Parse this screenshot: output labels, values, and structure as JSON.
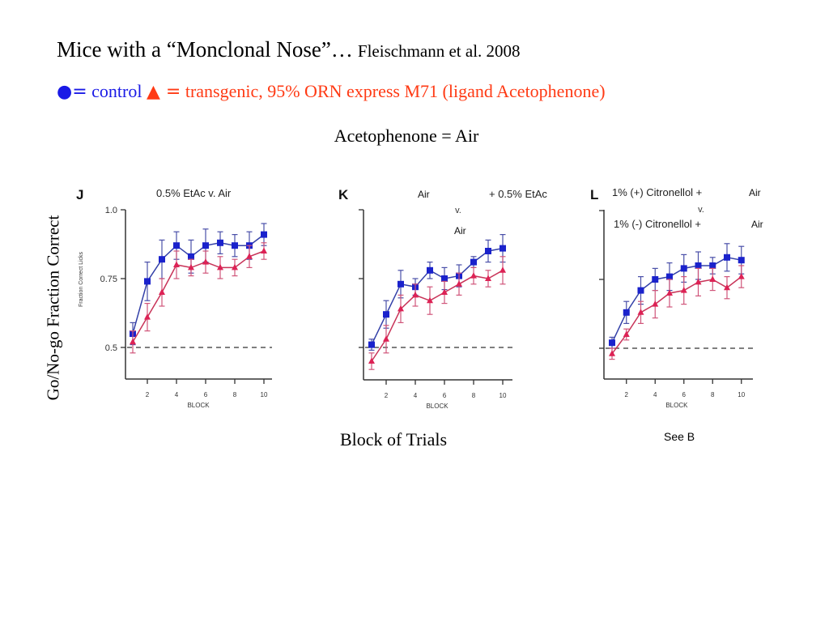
{
  "header": {
    "title": "Mice with a “Monclonal Nose”…",
    "citation": "Fleischmann et al. 2008",
    "legend_control_symbol": "●=",
    "legend_control_label": "control",
    "legend_transgenic_symbol": "▲ =",
    "legend_transgenic_label": "transgenic, 95% ORN express M71 (ligand Acetophenone)",
    "subtitle": "Acetophenone = Air"
  },
  "labels": {
    "y_axis": "Go/No-go Fraction Correct",
    "x_axis": "Block of Trials",
    "see_b": "See B"
  },
  "colors": {
    "control": "#1a22cc",
    "transgenic": "#dd2255",
    "control_line": "#3340a8",
    "transgenic_line": "#c83358",
    "legend_blue": "#1a1ae6",
    "legend_red": "#ff3a14"
  },
  "chart_data": [
    {
      "type": "line",
      "panel": "J",
      "title": "0.5% EtAc v. Air",
      "xlabel": "BLOCK",
      "ylabel": "Fraction Correct Licks",
      "x": [
        1,
        2,
        3,
        4,
        5,
        6,
        7,
        8,
        9,
        10
      ],
      "xticks": [
        "2",
        "4",
        "6",
        "8",
        "10"
      ],
      "yticks": [
        "0.5",
        "0.75",
        "1.0"
      ],
      "ylim": [
        0.38,
        1.0
      ],
      "reference_line": 0.5,
      "series": [
        {
          "name": "control",
          "values": [
            0.55,
            0.74,
            0.82,
            0.87,
            0.83,
            0.87,
            0.88,
            0.87,
            0.87,
            0.91
          ],
          "errors": [
            0.04,
            0.07,
            0.07,
            0.05,
            0.06,
            0.06,
            0.04,
            0.04,
            0.05,
            0.04
          ]
        },
        {
          "name": "transgenic",
          "values": [
            0.52,
            0.61,
            0.7,
            0.8,
            0.79,
            0.81,
            0.79,
            0.79,
            0.83,
            0.85
          ],
          "errors": [
            0.04,
            0.05,
            0.05,
            0.05,
            0.03,
            0.04,
            0.04,
            0.03,
            0.04,
            0.03
          ]
        }
      ]
    },
    {
      "type": "line",
      "panel": "K",
      "title_parts": [
        "Air",
        "+ 0.5% EtAc",
        "v.",
        "Air"
      ],
      "xlabel": "BLOCK",
      "ylabel": "",
      "x": [
        1,
        2,
        3,
        4,
        5,
        6,
        7,
        8,
        9,
        10
      ],
      "xticks": [
        "2",
        "4",
        "6",
        "8",
        "10"
      ],
      "yticks": [
        "",
        "",
        ""
      ],
      "ylim": [
        0.38,
        1.0
      ],
      "reference_line": 0.5,
      "series": [
        {
          "name": "control",
          "values": [
            0.51,
            0.62,
            0.73,
            0.72,
            0.78,
            0.75,
            0.76,
            0.81,
            0.85,
            0.86
          ],
          "errors": [
            0.02,
            0.05,
            0.05,
            0.03,
            0.03,
            0.04,
            0.04,
            0.02,
            0.04,
            0.05
          ]
        },
        {
          "name": "transgenic",
          "values": [
            0.45,
            0.53,
            0.64,
            0.69,
            0.67,
            0.7,
            0.73,
            0.76,
            0.75,
            0.78
          ],
          "errors": [
            0.03,
            0.05,
            0.05,
            0.04,
            0.05,
            0.04,
            0.04,
            0.03,
            0.03,
            0.05
          ]
        }
      ]
    },
    {
      "type": "line",
      "panel": "L",
      "title_parts": [
        "1% (+) Citronellol +",
        "Air",
        "v.",
        "1% (-) Citronellol +",
        "Air"
      ],
      "xlabel": "BLOCK",
      "ylabel": "",
      "x": [
        1,
        2,
        3,
        4,
        5,
        6,
        7,
        8,
        9,
        10
      ],
      "xticks": [
        "2",
        "4",
        "6",
        "8",
        "10"
      ],
      "yticks": [
        "",
        "",
        ""
      ],
      "ylim": [
        0.38,
        1.0
      ],
      "reference_line": 0.5,
      "series": [
        {
          "name": "control",
          "values": [
            0.52,
            0.63,
            0.71,
            0.75,
            0.76,
            0.79,
            0.8,
            0.8,
            0.83,
            0.82
          ],
          "errors": [
            0.02,
            0.04,
            0.05,
            0.04,
            0.05,
            0.05,
            0.05,
            0.03,
            0.05,
            0.05
          ]
        },
        {
          "name": "transgenic",
          "values": [
            0.48,
            0.55,
            0.63,
            0.66,
            0.7,
            0.71,
            0.74,
            0.75,
            0.72,
            0.76
          ],
          "errors": [
            0.02,
            0.02,
            0.04,
            0.05,
            0.05,
            0.05,
            0.05,
            0.04,
            0.04,
            0.04
          ]
        }
      ]
    }
  ]
}
